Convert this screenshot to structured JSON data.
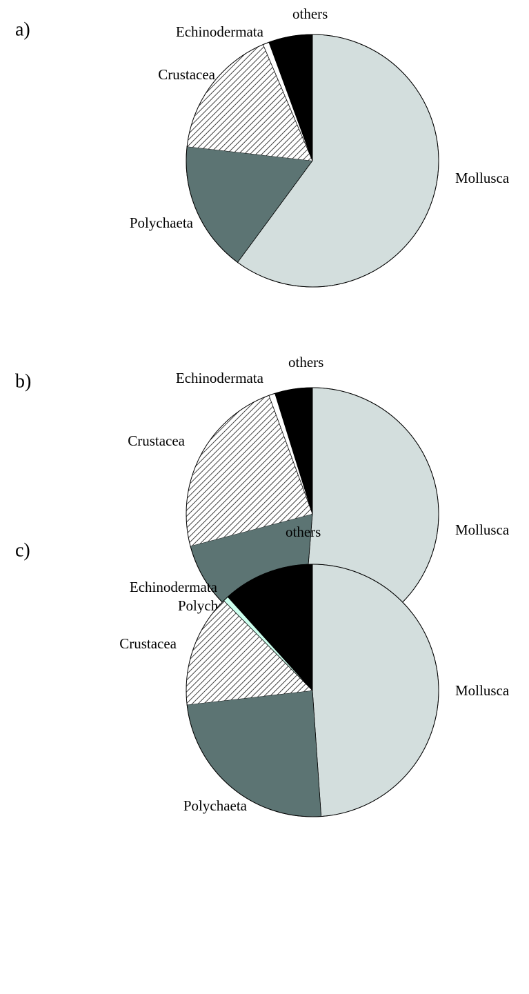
{
  "chart_data": [
    {
      "type": "pie",
      "title": "a)",
      "categories": [
        "Mollusca",
        "Polychaeta",
        "Crustacea",
        "Echinodermata",
        "others"
      ],
      "values": [
        60.1,
        16.7,
        16.8,
        0.8,
        5.6
      ],
      "colors": [
        "#d3dedd",
        "#5c7473",
        "#404040",
        "#ffffff",
        "#000000"
      ],
      "hatch": [
        false,
        false,
        true,
        false,
        false
      ]
    },
    {
      "type": "pie",
      "title": "b)",
      "categories": [
        "Mollusca",
        "Polychaeta",
        "Crustacea",
        "Echinodermata",
        "others"
      ],
      "values": [
        51.3,
        19.6,
        23.5,
        0.8,
        4.8
      ],
      "colors": [
        "#d3dedd",
        "#5c7473",
        "#404040",
        "#ffffff",
        "#000000"
      ],
      "hatch": [
        false,
        false,
        true,
        false,
        false
      ]
    },
    {
      "type": "pie",
      "title": "c)",
      "categories": [
        "Mollusca",
        "Polychaeta",
        "Crustacea",
        "Echinodermata",
        "others"
      ],
      "values": [
        48.9,
        24.3,
        14.4,
        0.7,
        11.7
      ],
      "colors": [
        "#d3dedd",
        "#5c7473",
        "#404040",
        "#ccffee",
        "#000000"
      ],
      "hatch": [
        false,
        false,
        true,
        false,
        false
      ]
    }
  ]
}
